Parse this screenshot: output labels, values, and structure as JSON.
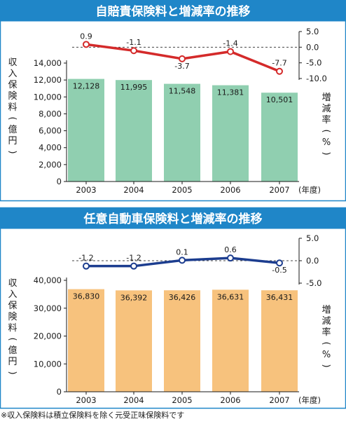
{
  "note": "※収入保険料は積立保険料を除く元受正味保険料です",
  "chart_data": [
    {
      "type": "bar",
      "title": "自賠責保険料と増減率の推移",
      "categories": [
        "2003",
        "2004",
        "2005",
        "2006",
        "2007"
      ],
      "x_unit_label": "(年度)",
      "values": [
        12128,
        11995,
        11548,
        11381,
        10501
      ],
      "value_labels": [
        "12,128",
        "11,995",
        "11,548",
        "11,381",
        "10,501"
      ],
      "ylabel": "収入保険料(億円)",
      "yticks": [
        "0",
        "2,000",
        "4,000",
        "6,000",
        "8,000",
        "10,000",
        "12,000",
        "14,000"
      ],
      "ylim": [
        0,
        14000
      ],
      "bar_color": "#90cfb0",
      "line": {
        "values": [
          0.9,
          -1.1,
          -3.7,
          -1.4,
          -7.7
        ],
        "labels": [
          "0.9",
          "-1.1",
          "-3.7",
          "-1.4",
          "-7.7"
        ],
        "ylabel": "増減率(%)",
        "yticks": [
          "5.0",
          "0.0",
          "-5.0",
          "-10.0"
        ],
        "ylim": [
          -10,
          5
        ],
        "color": "#d42a2a"
      },
      "header_color": "#1f86c8"
    },
    {
      "type": "bar",
      "title": "任意自動車保険料と増減率の推移",
      "categories": [
        "2003",
        "2004",
        "2005",
        "2006",
        "2007"
      ],
      "x_unit_label": "(年度)",
      "values": [
        36830,
        36392,
        36426,
        36631,
        36431
      ],
      "value_labels": [
        "36,830",
        "36,392",
        "36,426",
        "36,631",
        "36,431"
      ],
      "ylabel": "収入保険料(億円)",
      "yticks": [
        "0",
        "10,000",
        "20,000",
        "30,000",
        "40,000"
      ],
      "ylim": [
        0,
        40000
      ],
      "bar_color": "#f7c27d",
      "line": {
        "values": [
          -1.2,
          -1.2,
          0.1,
          0.6,
          -0.5
        ],
        "labels": [
          "-1.2",
          "-1.2",
          "0.1",
          "0.6",
          "-0.5"
        ],
        "ylabel": "増減率(%)",
        "yticks": [
          "5.0",
          "0.0",
          "-5.0"
        ],
        "ylim": [
          -5,
          5
        ],
        "color": "#1c3d8f"
      },
      "header_color": "#1f86c8"
    }
  ]
}
